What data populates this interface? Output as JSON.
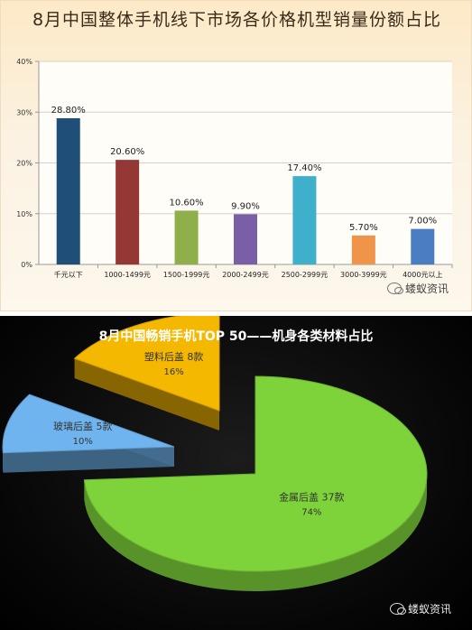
{
  "chart_data": [
    {
      "type": "bar",
      "title": "8月中国整体手机线下市场各价格机型销量份额占比",
      "categories": [
        "千元以下",
        "1000-1499元",
        "1500-1999元",
        "2000-2499元",
        "2500-2999元",
        "3000-3999元",
        "4000元以上"
      ],
      "values": [
        28.8,
        20.6,
        10.6,
        9.9,
        17.4,
        5.7,
        7.0
      ],
      "value_labels": [
        "28.80%",
        "20.60%",
        "10.60%",
        "9.90%",
        "17.40%",
        "5.70%",
        "7.00%"
      ],
      "colors": [
        "#1f4e79",
        "#953735",
        "#8faf4b",
        "#7a5ea8",
        "#3fb0cc",
        "#f0944a",
        "#4a7ec2"
      ],
      "ylim": [
        0,
        40
      ],
      "yticks": [
        "0%",
        "10%",
        "20%",
        "30%",
        "40%"
      ],
      "grid": true,
      "xlabel": "",
      "ylabel": ""
    },
    {
      "type": "pie",
      "title": "8月中国畅销手机TOP 50——机身各类材料占比",
      "slices": [
        {
          "label": "金属后盖",
          "count": "37款",
          "value": 74,
          "pct": "74%",
          "color": "#7ed23a"
        },
        {
          "label": "塑料后盖",
          "count": "8款",
          "value": 16,
          "pct": "16%",
          "color": "#f5b800"
        },
        {
          "label": "玻璃后盖",
          "count": "5款",
          "value": 10,
          "pct": "10%",
          "color": "#6fb4ee"
        }
      ]
    }
  ],
  "watermark": {
    "text": "蝼蚁资讯"
  }
}
